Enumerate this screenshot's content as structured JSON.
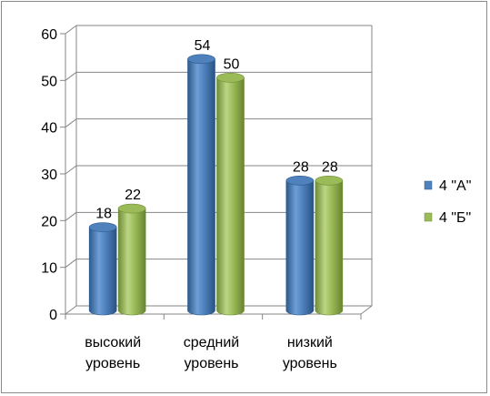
{
  "chart_data": {
    "type": "bar",
    "style": "3d-cylinder",
    "categories": [
      "высокий уровень",
      "средний уровень",
      "низкий уровень"
    ],
    "category_lines": [
      [
        "высокий",
        "уровень"
      ],
      [
        "средний",
        "уровень"
      ],
      [
        "низкий",
        "уровень"
      ]
    ],
    "series": [
      {
        "name": "4 \"А\"",
        "values": [
          18,
          54,
          28
        ],
        "color": "#4f81bd",
        "color_dark": "#2c5a8c"
      },
      {
        "name": "4 \"Б\"",
        "values": [
          22,
          50,
          28
        ],
        "color": "#9bbb59",
        "color_dark": "#6f8c35"
      }
    ],
    "ylim": [
      0,
      60
    ],
    "yticks": [
      0,
      10,
      20,
      30,
      40,
      50,
      60
    ],
    "ytick_labels": [
      "0",
      "10",
      "20",
      "30",
      "40",
      "50",
      "60"
    ],
    "grid": true,
    "legend_position": "right",
    "title": "",
    "xlabel": "",
    "ylabel": ""
  }
}
